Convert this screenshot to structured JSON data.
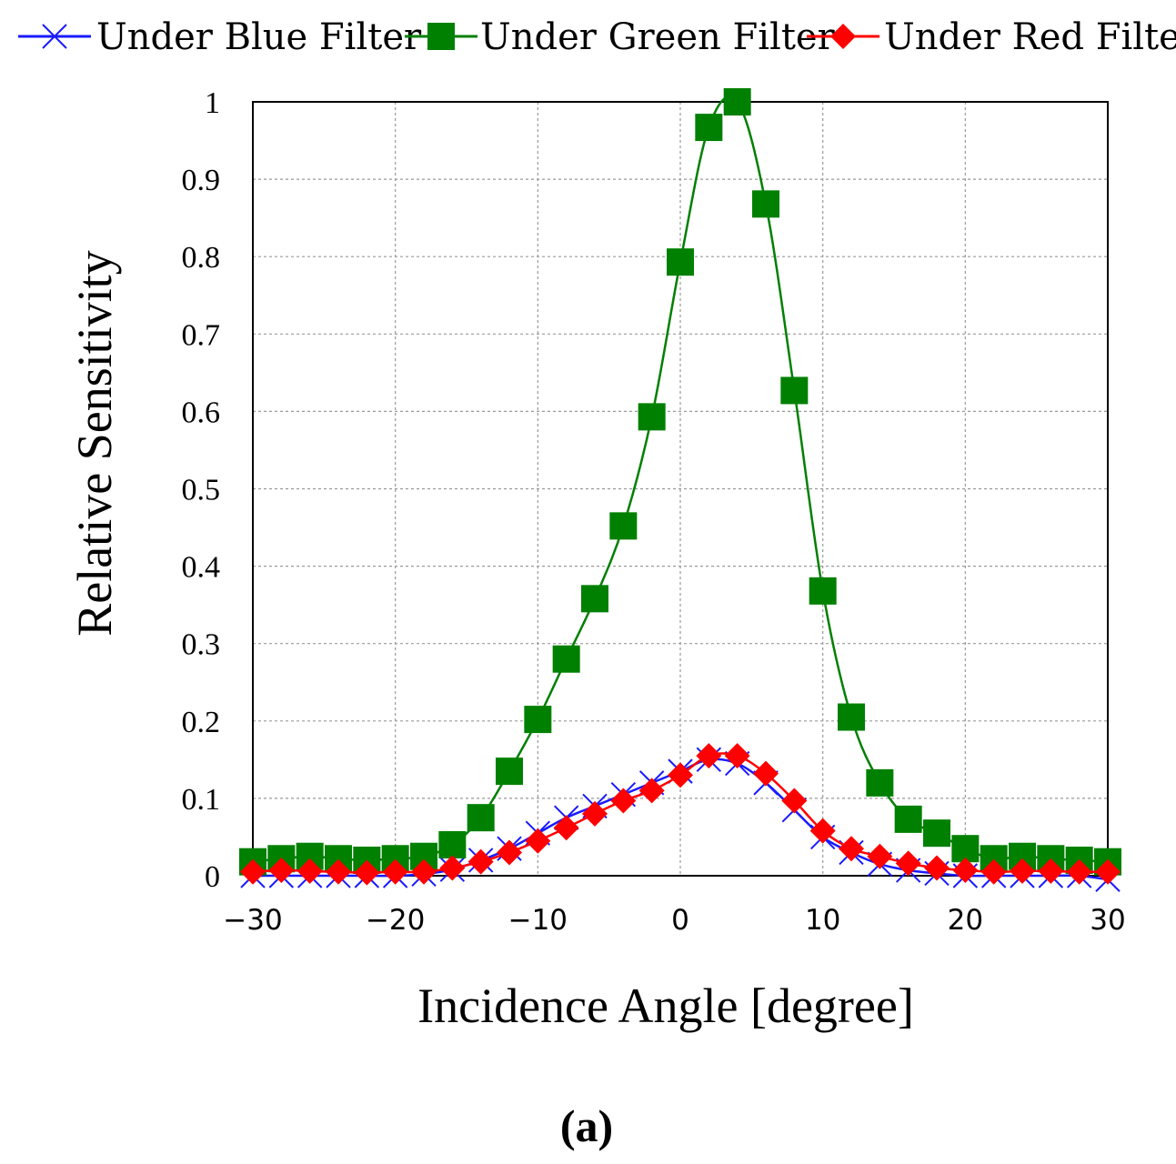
{
  "chart_data": {
    "type": "line",
    "xlabel": "Incidence Angle [degree]",
    "ylabel": "Relative Sensitivity",
    "panel_label": "(a)",
    "xlim": [
      -30,
      30
    ],
    "ylim": [
      0,
      1
    ],
    "xticks": [
      -30,
      -20,
      -10,
      0,
      10,
      20,
      30
    ],
    "xtick_labels": [
      "−30",
      "−20",
      "−10",
      "0",
      "10",
      "20",
      "30"
    ],
    "yticks": [
      0,
      0.1,
      0.2,
      0.3,
      0.4,
      0.5,
      0.6,
      0.7,
      0.8,
      0.9,
      1
    ],
    "ytick_labels": [
      "0",
      "0.1",
      "0.2",
      "0.3",
      "0.4",
      "0.5",
      "0.6",
      "0.7",
      "0.8",
      "0.9",
      "1"
    ],
    "grid": true,
    "legend_position": "top",
    "x": [
      -30,
      -28,
      -26,
      -24,
      -22,
      -20,
      -18,
      -16,
      -14,
      -12,
      -10,
      -8,
      -6,
      -4,
      -2,
      0,
      2,
      4,
      6,
      8,
      10,
      12,
      14,
      16,
      18,
      20,
      22,
      24,
      26,
      28,
      30
    ],
    "series": [
      {
        "name": "Under Blue Filter",
        "color": "#1a1aff",
        "marker": "x",
        "values": [
          0.0,
          0.0,
          0.0,
          0.0,
          0.0,
          0.0,
          0.002,
          0.008,
          0.02,
          0.035,
          0.055,
          0.075,
          0.09,
          0.105,
          0.12,
          0.135,
          0.15,
          0.145,
          0.12,
          0.085,
          0.05,
          0.03,
          0.015,
          0.007,
          0.003,
          0.0,
          0.0,
          0.0,
          0.0,
          0.0,
          -0.005
        ]
      },
      {
        "name": "Under Green Filter",
        "color": "#008000",
        "marker": "square",
        "values": [
          0.018,
          0.022,
          0.025,
          0.022,
          0.02,
          0.022,
          0.025,
          0.04,
          0.075,
          0.135,
          0.202,
          0.28,
          0.358,
          0.452,
          0.593,
          0.793,
          0.967,
          1.0,
          0.868,
          0.627,
          0.368,
          0.205,
          0.12,
          0.073,
          0.055,
          0.035,
          0.022,
          0.025,
          0.022,
          0.02,
          0.018
        ]
      },
      {
        "name": "Under Red Filter",
        "color": "#ff0000",
        "marker": "diamond",
        "values": [
          0.005,
          0.007,
          0.006,
          0.005,
          0.004,
          0.005,
          0.005,
          0.01,
          0.018,
          0.03,
          0.045,
          0.062,
          0.08,
          0.097,
          0.11,
          0.13,
          0.155,
          0.155,
          0.132,
          0.097,
          0.058,
          0.035,
          0.025,
          0.016,
          0.01,
          0.007,
          0.005,
          0.006,
          0.006,
          0.005,
          0.005
        ]
      }
    ]
  }
}
